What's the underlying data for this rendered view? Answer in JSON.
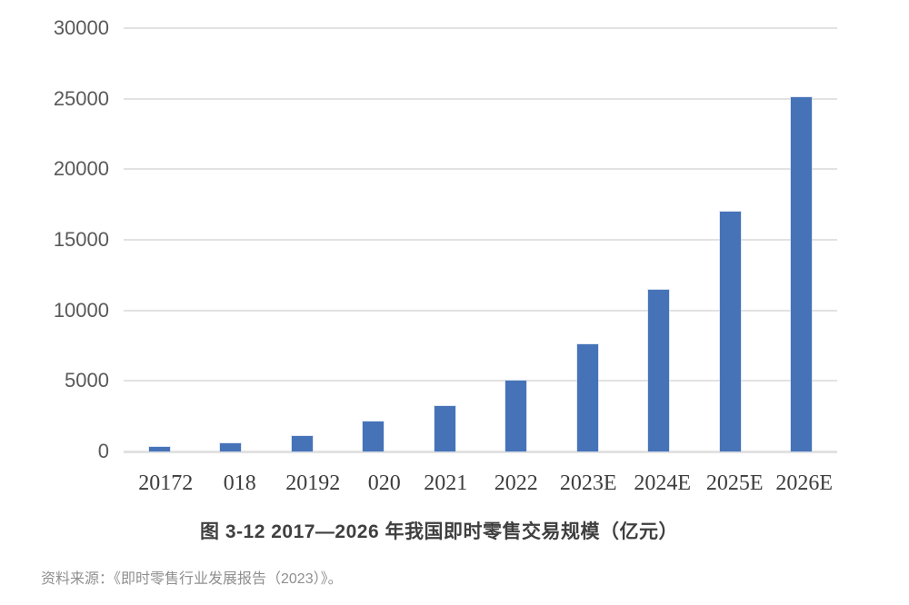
{
  "chart_data": {
    "type": "bar",
    "title": "图 3-12 2017—2026 年我国即时零售交易规模（亿元）",
    "source": "资料来源：《即时零售行业发展报告（2023）》。",
    "categories": [
      "20172",
      "018",
      "20192",
      "020",
      "2021",
      "2022",
      "2023E",
      "2024E",
      "2025E",
      "2026E"
    ],
    "values": [
      300,
      600,
      1100,
      2100,
      3200,
      5050,
      7600,
      11450,
      17000,
      25100
    ],
    "y_ticks": [
      0,
      5000,
      10000,
      15000,
      20000,
      25000,
      30000
    ],
    "ylim": [
      0,
      30000
    ],
    "xlabel": "",
    "ylabel": "",
    "legend_position": "none",
    "grid": "horizontal",
    "bar_color": "#4673b8",
    "gridline_color": "#e2e2e2",
    "axis_label_color": "#595959",
    "tick_label_color": "#3d3d3d",
    "title_color": "#3f3f3f",
    "source_color": "#8f8f8f"
  }
}
